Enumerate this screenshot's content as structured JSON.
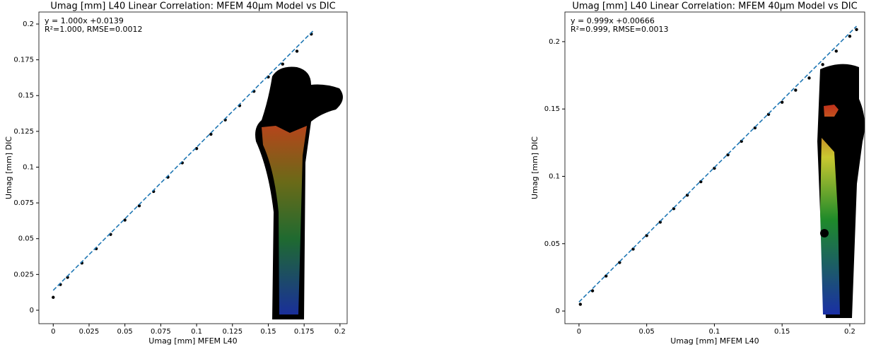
{
  "chart_data": [
    {
      "type": "scatter",
      "title": "Umag [mm] L40 Linear Correlation: MFEM 40μm Model vs DIC",
      "xlabel": "Umag [mm] MFEM L40",
      "ylabel": "Umag [mm] DIC",
      "annotations": [
        "y = 1.000x +0.0139",
        "R²=1.000, RMSE=0.0012"
      ],
      "xlim": [
        -0.01,
        0.205
      ],
      "ylim": [
        -0.0094,
        0.2084
      ],
      "xticks": [
        0,
        0.025,
        0.05,
        0.075,
        0.1,
        0.125,
        0.15,
        0.175,
        0.2
      ],
      "yticks": [
        0,
        0.025,
        0.05,
        0.075,
        0.1,
        0.125,
        0.15,
        0.175,
        0.2
      ],
      "series": [
        {
          "color": "#000000",
          "style": "dots",
          "x": [
            0,
            0.005,
            0.01,
            0.02,
            0.03,
            0.04,
            0.05,
            0.06,
            0.07,
            0.08,
            0.09,
            0.1,
            0.11,
            0.12,
            0.13,
            0.14,
            0.15,
            0.16,
            0.17,
            0.18
          ],
          "values": [
            0.009,
            0.018,
            0.023,
            0.033,
            0.043,
            0.053,
            0.063,
            0.073,
            0.083,
            0.093,
            0.103,
            0.113,
            0.123,
            0.133,
            0.143,
            0.153,
            0.163,
            0.172,
            0.181,
            0.193
          ]
        },
        {
          "color": "#1f77b4",
          "style": "dashed",
          "x": [
            0,
            0.182
          ],
          "values": [
            0.0139,
            0.196
          ]
        }
      ]
    },
    {
      "type": "scatter",
      "title": "Umag [mm] L40 Linear Correlation: MFEM 40μm Model vs DIC",
      "xlabel": "Umag [mm] MFEM L40",
      "ylabel": "Umag [mm] DIC",
      "annotations": [
        "y = 0.999x +0.00666",
        "R²=0.999, RMSE=0.0013"
      ],
      "xlim": [
        -0.0104,
        0.211
      ],
      "ylim": [
        -0.0094,
        0.222
      ],
      "xticks": [
        0,
        0.05,
        0.1,
        0.15,
        0.2
      ],
      "yticks": [
        0,
        0.05,
        0.1,
        0.15,
        0.2
      ],
      "series": [
        {
          "color": "#000000",
          "style": "dots",
          "x": [
            0.001,
            0.01,
            0.02,
            0.03,
            0.04,
            0.05,
            0.06,
            0.07,
            0.08,
            0.09,
            0.1,
            0.11,
            0.12,
            0.13,
            0.14,
            0.15,
            0.16,
            0.17,
            0.18,
            0.19,
            0.2,
            0.205
          ],
          "values": [
            0.005,
            0.015,
            0.026,
            0.036,
            0.046,
            0.056,
            0.066,
            0.076,
            0.086,
            0.096,
            0.106,
            0.116,
            0.126,
            0.136,
            0.146,
            0.155,
            0.164,
            0.173,
            0.183,
            0.193,
            0.204,
            0.209
          ]
        },
        {
          "color": "#1f77b4",
          "style": "dashed",
          "x": [
            0,
            0.205
          ],
          "values": [
            0.0067,
            0.2115
          ]
        }
      ]
    }
  ]
}
